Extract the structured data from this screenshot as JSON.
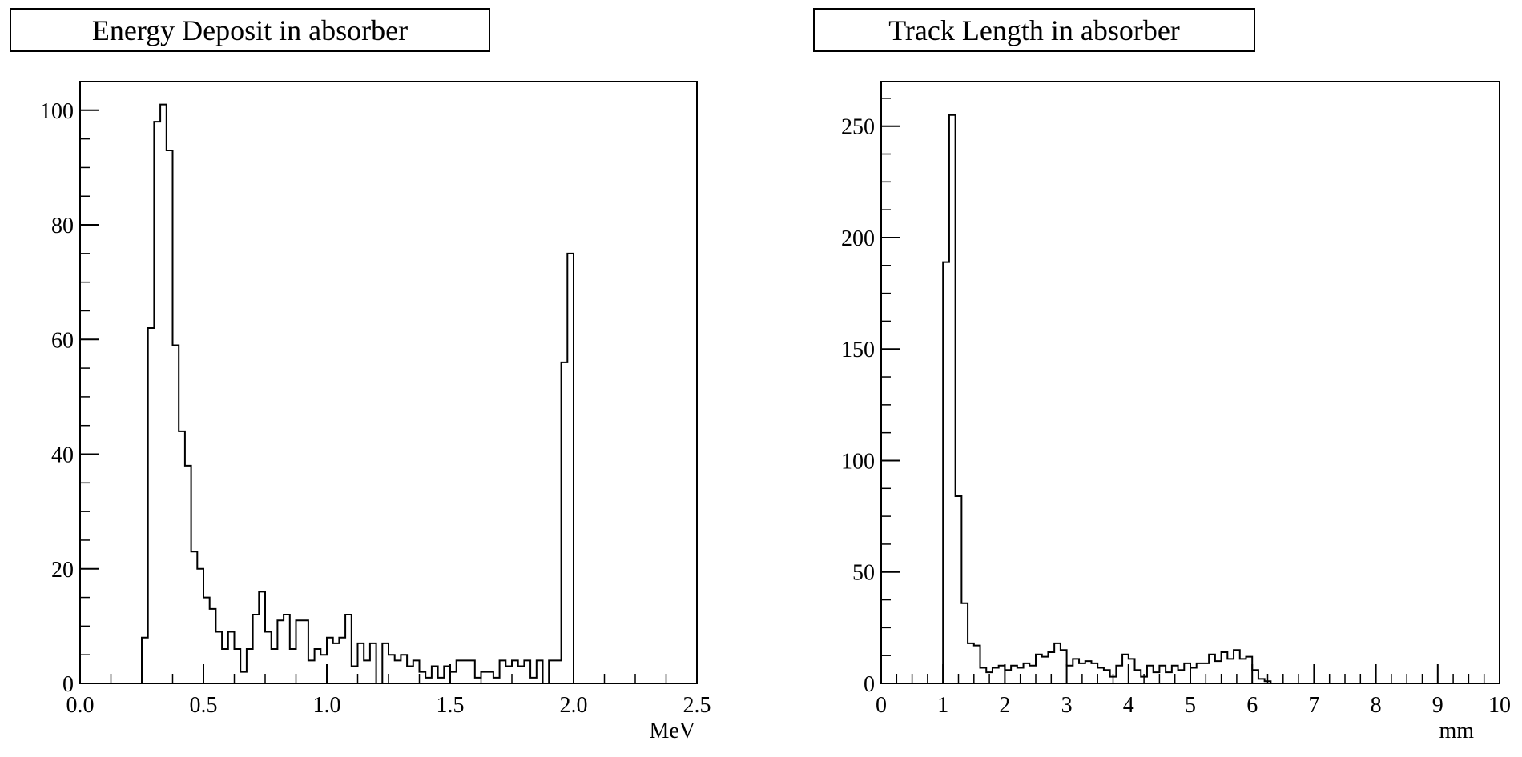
{
  "chart_data": [
    {
      "type": "bar",
      "title": "Energy Deposit in absorber",
      "xlabel": "MeV",
      "ylabel": "",
      "xlim": [
        0.0,
        2.5
      ],
      "ylim": [
        0,
        105
      ],
      "grid": false,
      "x_ticks": [
        "0.0",
        "0.5",
        "1.0",
        "1.5",
        "2.0",
        "2.5"
      ],
      "y_ticks": [
        "0",
        "20",
        "40",
        "60",
        "80",
        "100"
      ],
      "bin_width": 0.025,
      "bin_start": 0.25,
      "values": [
        8,
        62,
        98,
        101,
        93,
        59,
        44,
        38,
        23,
        20,
        15,
        13,
        9,
        6,
        9,
        6,
        2,
        6,
        12,
        16,
        9,
        6,
        11,
        12,
        6,
        11,
        11,
        4,
        6,
        5,
        8,
        7,
        8,
        12,
        3,
        7,
        4,
        7,
        0,
        7,
        5,
        4,
        5,
        3,
        4,
        2,
        1,
        3,
        1,
        3,
        2,
        4,
        4,
        4,
        1,
        2,
        2,
        1,
        4,
        3,
        4,
        3,
        4,
        1,
        4,
        0,
        4,
        4,
        56,
        75
      ]
    },
    {
      "type": "bar",
      "title": "Track Length in absorber",
      "xlabel": "mm",
      "ylabel": "",
      "xlim": [
        0,
        10
      ],
      "ylim": [
        0,
        270
      ],
      "grid": false,
      "x_ticks": [
        "0",
        "1",
        "2",
        "3",
        "4",
        "5",
        "6",
        "7",
        "8",
        "9",
        "10"
      ],
      "y_ticks": [
        "0",
        "50",
        "100",
        "150",
        "200",
        "250"
      ],
      "bin_width": 0.1,
      "bin_start": 1.0,
      "values": [
        189,
        255,
        84,
        36,
        18,
        17,
        7,
        5,
        7,
        8,
        6,
        8,
        7,
        9,
        8,
        13,
        12,
        14,
        18,
        15,
        8,
        11,
        9,
        10,
        9,
        7,
        6,
        3,
        8,
        13,
        11,
        6,
        3,
        8,
        5,
        8,
        5,
        8,
        6,
        9,
        7,
        9,
        9,
        13,
        10,
        14,
        11,
        15,
        11,
        12,
        6,
        2,
        1
      ]
    }
  ]
}
